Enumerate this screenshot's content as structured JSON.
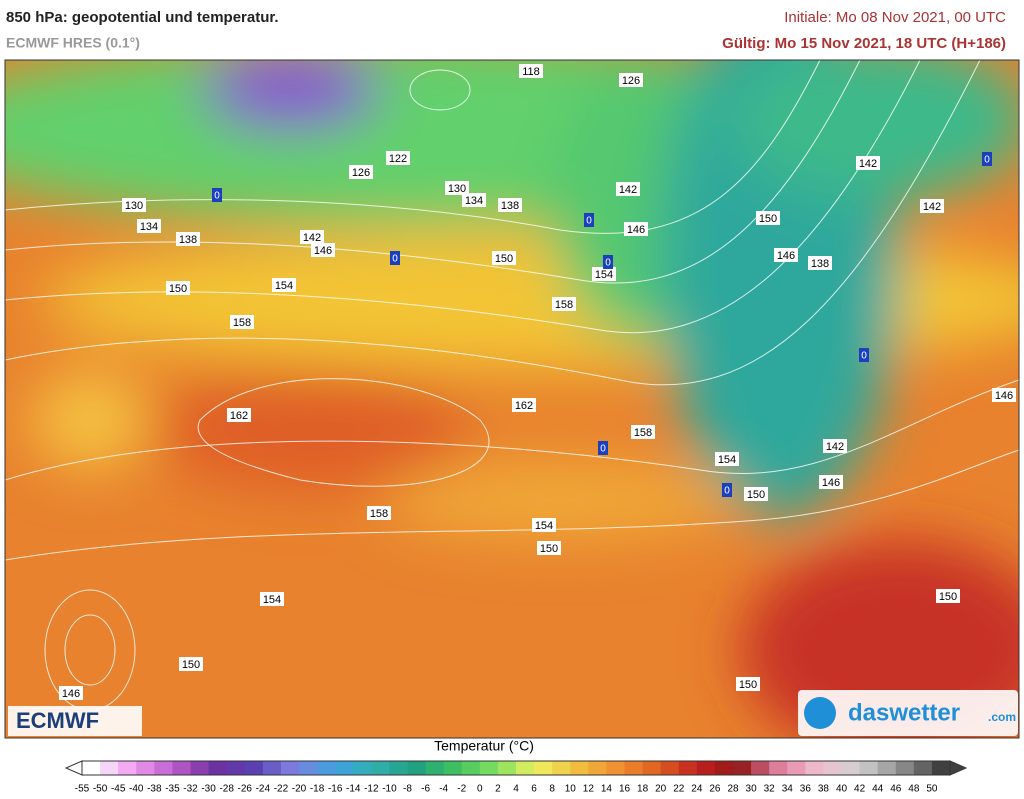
{
  "header": {
    "title": "850 hPa: geopotential und temperatur.",
    "model": "ECMWF HRES (0.1°)",
    "initiale": "Initiale: Mo 08 Nov 2021, 00 UTC",
    "gueltig": "Gültig: Mo 15 Nov 2021, 18 UTC (H+186)"
  },
  "map": {
    "contour_labels": [
      118,
      126,
      122,
      126,
      130,
      134,
      138,
      130,
      134,
      138,
      142,
      146,
      150,
      142,
      146,
      154,
      158,
      150,
      146,
      138,
      142,
      142,
      150,
      154,
      158,
      162,
      162,
      158,
      154,
      150,
      146,
      142,
      146,
      158,
      154,
      150,
      154,
      150,
      146,
      150,
      150
    ],
    "isotherm_labels": [
      0,
      0,
      0,
      0,
      0,
      0,
      0,
      0
    ],
    "logo_left": "ECMWF",
    "logo_right": "daswetter",
    "logo_right_suffix": ".com"
  },
  "legend": {
    "title": "Temperatur (°C)",
    "labels": [
      -55,
      -50,
      -45,
      -40,
      -38,
      -35,
      -32,
      -30,
      -28,
      -26,
      -24,
      -22,
      -20,
      -18,
      -16,
      -14,
      -12,
      -10,
      -8,
      -6,
      -4,
      -2,
      0,
      2,
      4,
      6,
      8,
      10,
      12,
      14,
      16,
      18,
      20,
      22,
      24,
      26,
      28,
      30,
      32,
      34,
      36,
      38,
      40,
      42,
      44,
      46,
      48,
      50
    ],
    "palette": [
      "#ffffff",
      "#f0a0f0",
      "#c060d0",
      "#7030a0",
      "#5a3fb0",
      "#7f7fe0",
      "#40a0e0",
      "#30b0b0",
      "#20a080",
      "#40c060",
      "#80e060",
      "#f0f060",
      "#f0c040",
      "#f09030",
      "#e06020",
      "#c02020",
      "#901818",
      "#e080a0",
      "#f0c0d0",
      "#d0d0d0",
      "#909090",
      "#404040"
    ]
  }
}
